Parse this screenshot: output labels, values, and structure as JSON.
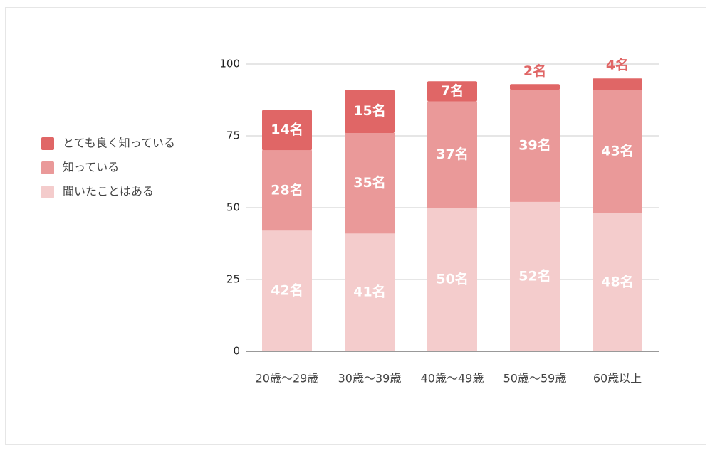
{
  "chart_data": {
    "type": "stacked_bar",
    "categories": [
      "20歳〜29歳",
      "30歳〜39歳",
      "40歳〜49歳",
      "50歳〜59歳",
      "60歳以上"
    ],
    "series": [
      {
        "name": "聞いたことはある",
        "color": "#f4cccc",
        "values": [
          42,
          41,
          50,
          52,
          48
        ],
        "value_labels": [
          "42名",
          "41名",
          "50名",
          "52名",
          "48名"
        ]
      },
      {
        "name": "知っている",
        "color": "#ea9999",
        "values": [
          28,
          35,
          37,
          39,
          43
        ],
        "value_labels": [
          "28名",
          "35名",
          "37名",
          "39名",
          "43名"
        ]
      },
      {
        "name": "とても良く知っている",
        "color": "#e06666",
        "values": [
          14,
          15,
          7,
          2,
          4
        ],
        "value_labels": [
          "14名",
          "15名",
          "7名",
          "2名",
          "4名"
        ]
      }
    ],
    "ylim": [
      0,
      100
    ],
    "yticks": [
      0,
      25,
      50,
      75,
      100
    ],
    "grid": true,
    "legend": "left"
  }
}
